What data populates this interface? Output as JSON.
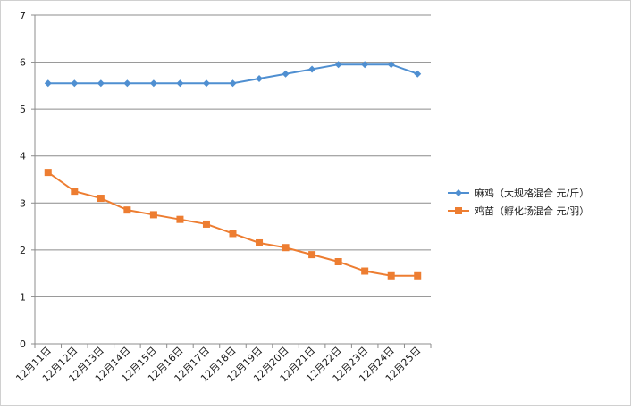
{
  "chart_data": {
    "type": "line",
    "categories": [
      "12月11日",
      "12月12日",
      "12月13日",
      "12月14日",
      "12月15日",
      "12月16日",
      "12月17日",
      "12月18日",
      "12月19日",
      "12月20日",
      "12月21日",
      "12月22日",
      "12月23日",
      "12月24日",
      "12月25日"
    ],
    "series": [
      {
        "name": "麻鸡（大规格混合  元/斤）",
        "color": "#4f8fd1",
        "marker": "diamond",
        "values": [
          5.55,
          5.55,
          5.55,
          5.55,
          5.55,
          5.55,
          5.55,
          5.55,
          5.65,
          5.75,
          5.85,
          5.95,
          5.95,
          5.95,
          5.75
        ]
      },
      {
        "name": "鸡苗（孵化场混合  元/羽）",
        "color": "#ed7d31",
        "marker": "square",
        "values": [
          3.65,
          3.25,
          3.1,
          2.85,
          2.75,
          2.65,
          2.55,
          2.35,
          2.15,
          2.05,
          1.9,
          1.75,
          1.55,
          1.45,
          1.45
        ]
      }
    ],
    "y_ticks": [
      "0",
      "1",
      "2",
      "3",
      "4",
      "5",
      "6",
      "7"
    ],
    "ylim": [
      0,
      7
    ],
    "grid": true,
    "legend_position": "right"
  }
}
